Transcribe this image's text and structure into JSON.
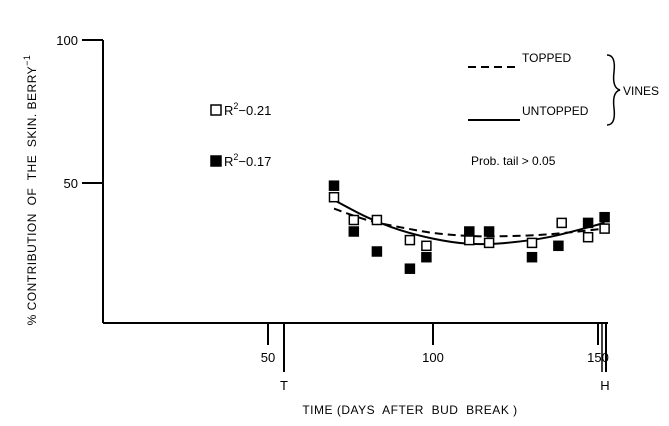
{
  "chart_data": {
    "type": "scatter",
    "xlabel": "TIME (DAYS  AFTER  BUD  BREAK )",
    "ylabel": "% CONTRIBUTION  OF  THE  SKIN. BERRY",
    "ylabel_superscript": "−1",
    "xlim": [
      0,
      155
    ],
    "ylim": [
      0,
      100
    ],
    "x_ticks": [
      50,
      100,
      150
    ],
    "y_ticks": [
      50,
      100
    ],
    "markers": [
      {
        "x": 55,
        "label": "T"
      },
      {
        "x": 153,
        "label": "H"
      }
    ],
    "series": [
      {
        "name": "open-squares",
        "marker": "open-square",
        "r2_label": "R",
        "r2_value": "−0.21",
        "points": [
          {
            "x": 70,
            "y": 44
          },
          {
            "x": 76,
            "y": 36
          },
          {
            "x": 83,
            "y": 36
          },
          {
            "x": 93,
            "y": 29
          },
          {
            "x": 98,
            "y": 27
          },
          {
            "x": 111,
            "y": 29
          },
          {
            "x": 117,
            "y": 28
          },
          {
            "x": 130,
            "y": 28
          },
          {
            "x": 139,
            "y": 35
          },
          {
            "x": 147,
            "y": 30
          },
          {
            "x": 152,
            "y": 33
          }
        ],
        "fit": {
          "style": "dashed",
          "label": "TOPPED",
          "y": [
            40,
            36,
            33.5,
            31.5,
            30.5,
            30.3,
            31,
            33
          ]
        }
      },
      {
        "name": "filled-squares",
        "marker": "filled-square",
        "r2_label": "R",
        "r2_value": "−0.17",
        "points": [
          {
            "x": 70,
            "y": 48
          },
          {
            "x": 76,
            "y": 32
          },
          {
            "x": 83,
            "y": 25
          },
          {
            "x": 93,
            "y": 19
          },
          {
            "x": 98,
            "y": 23
          },
          {
            "x": 111,
            "y": 32
          },
          {
            "x": 117,
            "y": 32
          },
          {
            "x": 130,
            "y": 23
          },
          {
            "x": 138,
            "y": 27
          },
          {
            "x": 147,
            "y": 35
          },
          {
            "x": 152,
            "y": 37
          }
        ],
        "fit": {
          "style": "solid",
          "label": "UNTOPPED",
          "y": [
            43,
            37,
            32.5,
            29.5,
            27.8,
            27.8,
            30,
            35
          ]
        }
      }
    ],
    "fit_x": [
      70,
      80,
      90,
      100,
      110,
      120,
      135,
      152
    ],
    "legend_group_label": "VINES",
    "annotation": "Prob. tail > 0.05",
    "grid": false
  }
}
